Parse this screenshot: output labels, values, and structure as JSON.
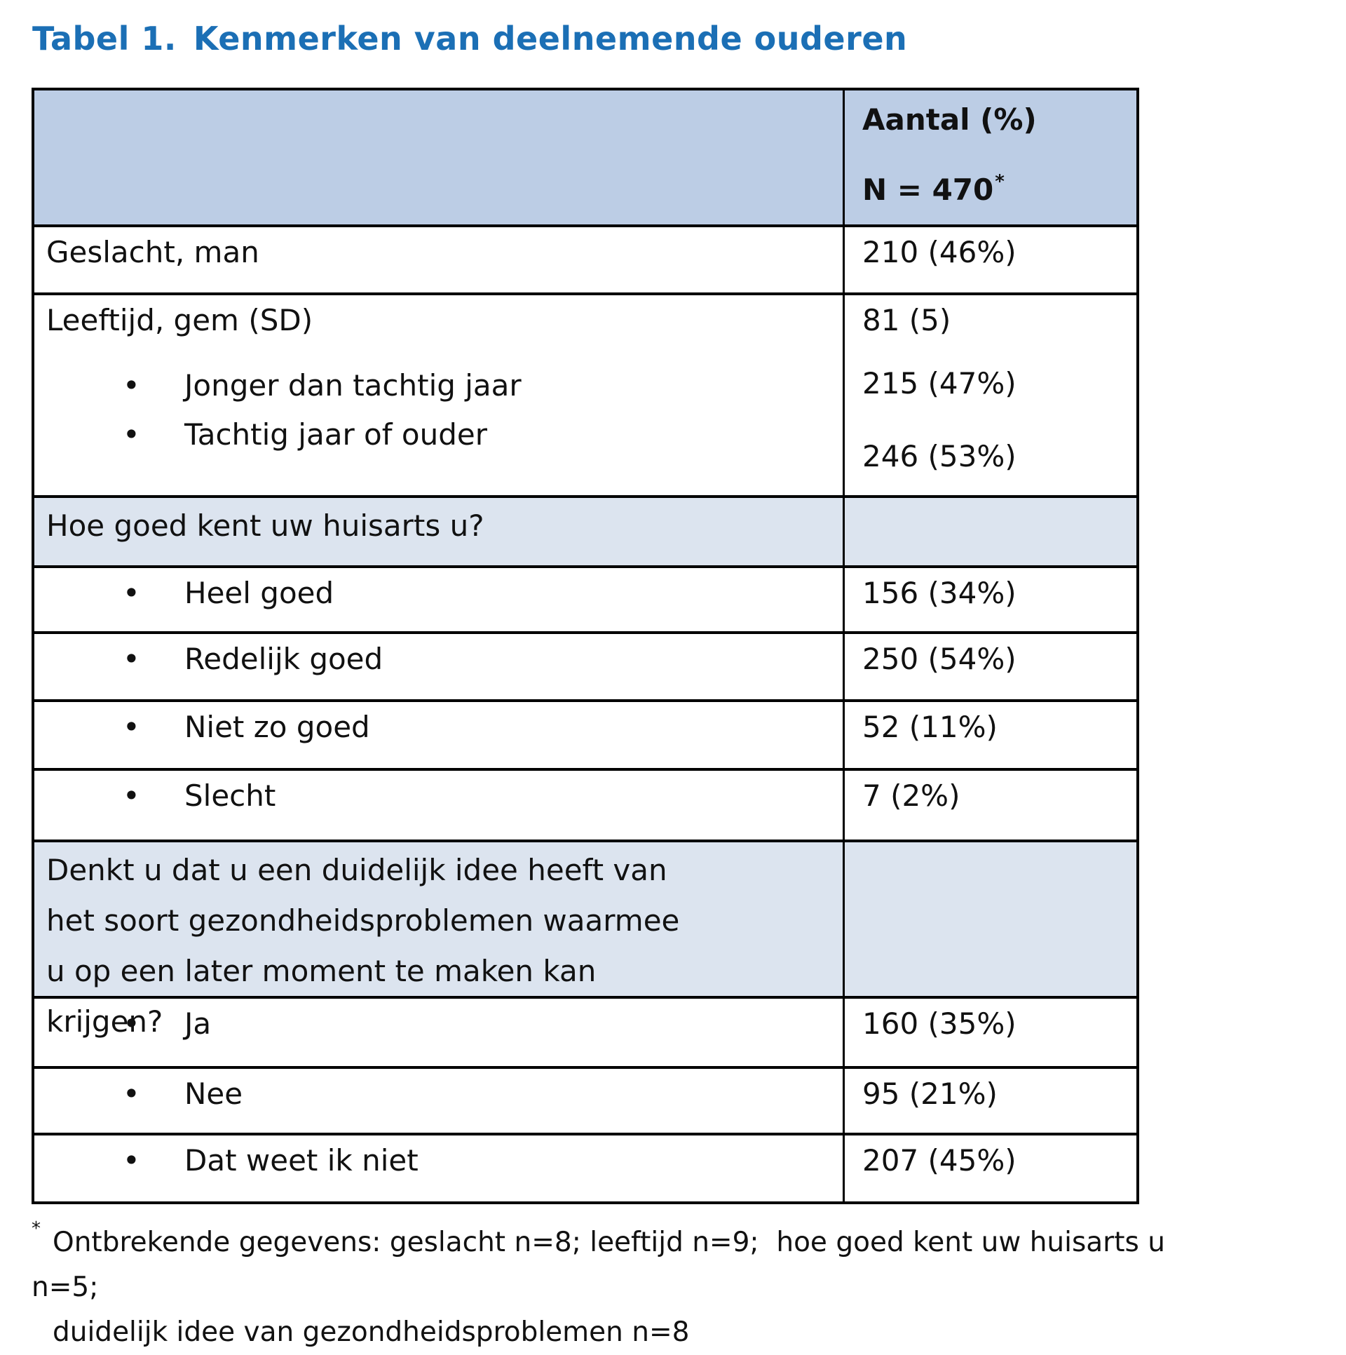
{
  "page": {
    "title_prefix": "Tabel 1.",
    "title_text": "Kenmerken van deelnemende ouderen"
  },
  "table": {
    "header": {
      "empty_label": "",
      "value_label": "Aantal (%)",
      "n_label": "N = 470",
      "n_sup": "*"
    },
    "rows": [
      {
        "kind": "plain",
        "label": "Geslacht, man",
        "value": "210 (46%)"
      },
      {
        "kind": "group",
        "label": "Leeftijd, gem (SD)",
        "bullets": [
          "Jonger dan tachtig jaar",
          "Tachtig jaar of ouder"
        ],
        "values": [
          "81 (5)",
          "215 (47%)",
          "246 (53%)"
        ]
      },
      {
        "kind": "section",
        "label": "Hoe goed kent uw huisarts u?",
        "value": ""
      },
      {
        "kind": "bullet",
        "label": "Heel goed",
        "value": "156 (34%)"
      },
      {
        "kind": "bullet",
        "label": "Redelijk goed",
        "value": "250 (54%)"
      },
      {
        "kind": "bullet",
        "label": "Niet zo goed",
        "value": "52 (11%)"
      },
      {
        "kind": "bullet",
        "label": "Slecht",
        "value": "7 (2%)"
      },
      {
        "kind": "section",
        "label": "Denkt u dat u een duidelijk idee heeft van het soort gezondheidsproblemen waarmee u op een later moment te maken kan krijgen?",
        "value": ""
      },
      {
        "kind": "bullet",
        "label": "Ja",
        "value": "160 (35%)"
      },
      {
        "kind": "bullet",
        "label": "Nee",
        "value": "95 (21%)"
      },
      {
        "kind": "bullet",
        "label": "Dat weet ik niet",
        "value": "207 (45%)"
      }
    ],
    "bullet_glyph": "•"
  },
  "footnote": {
    "marker": "*",
    "line1": "Ontbrekende gegevens: geslacht n=8; leeftijd n=9;  hoe goed kent uw huisarts u n=5;",
    "line2": "duidelijk idee van gezondheidsproblemen n=8"
  },
  "colors": {
    "title": "#1b6fb5",
    "header_bg": "#bccde5",
    "section_bg": "#dce4ef",
    "border": "#000000",
    "text": "#111111"
  }
}
